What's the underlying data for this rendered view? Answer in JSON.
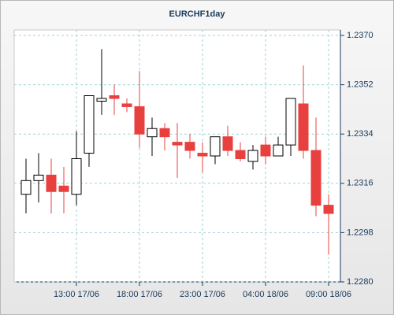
{
  "chart_data": {
    "type": "candlestick",
    "title": "EURCHF1day",
    "categories": [
      null,
      null,
      null,
      null,
      "13:00 17/06",
      null,
      null,
      null,
      null,
      "18:00 17/06",
      null,
      null,
      null,
      null,
      "23:00 17/06",
      null,
      null,
      null,
      null,
      "04:00 18/06",
      null,
      null,
      null,
      null,
      "09:00 18/06"
    ],
    "open": [
      1.2312,
      1.2317,
      1.2319,
      1.2315,
      1.2312,
      1.2327,
      1.2346,
      1.2348,
      1.2345,
      1.2344,
      1.2333,
      1.2336,
      1.2331,
      1.2331,
      1.2327,
      1.2326,
      1.2333,
      1.2328,
      1.2324,
      1.233,
      1.2326,
      1.233,
      1.2345,
      1.2328,
      1.2308
    ],
    "high": [
      1.2325,
      1.2327,
      1.2325,
      1.2322,
      1.2335,
      1.2348,
      1.2365,
      1.2352,
      1.2347,
      1.2357,
      1.234,
      1.2338,
      1.2338,
      1.2334,
      1.2331,
      1.2333,
      1.2337,
      1.2331,
      1.233,
      1.2333,
      1.2333,
      1.2347,
      1.2359,
      1.234,
      1.2312
    ],
    "low": [
      1.2305,
      1.2309,
      1.2305,
      1.2305,
      1.2308,
      1.2322,
      1.2341,
      1.2341,
      1.2342,
      1.2329,
      1.2326,
      1.2328,
      1.2318,
      1.2325,
      1.232,
      1.2323,
      1.2326,
      1.2324,
      1.2321,
      1.2323,
      1.2326,
      1.2326,
      1.2325,
      1.2304,
      1.229
    ],
    "close": [
      1.2317,
      1.2319,
      1.2313,
      1.2313,
      1.2325,
      1.2348,
      1.2347,
      1.2347,
      1.2344,
      1.2334,
      1.2336,
      1.2333,
      1.233,
      1.2328,
      1.2326,
      1.2333,
      1.2328,
      1.2325,
      1.2328,
      1.2326,
      1.233,
      1.2347,
      1.2328,
      1.2308,
      1.2305
    ],
    "up_color": "#ffffff",
    "down_color": "#e8403f",
    "ylim": [
      1.228,
      1.237
    ],
    "yticks": [
      {
        "value": 1.228,
        "label": "1.2280"
      },
      1.2298,
      1.2316,
      1.2334,
      1.2352,
      {
        "value": 1.237,
        "label": "1.2370"
      }
    ],
    "grid": true
  }
}
